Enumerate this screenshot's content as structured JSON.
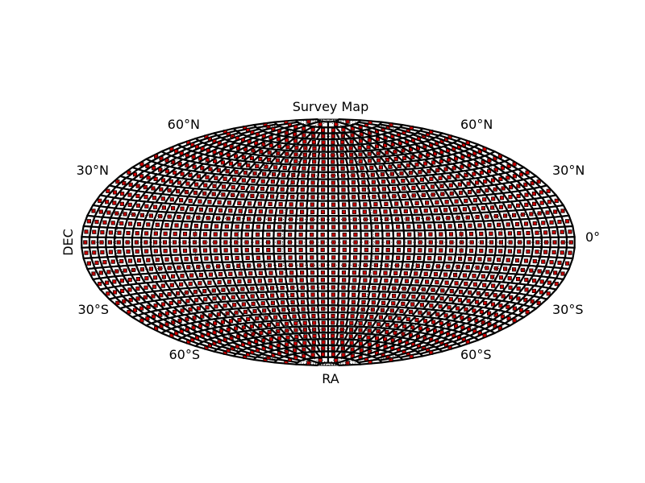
{
  "chart_data": {
    "type": "scatter",
    "projection": "hammer",
    "title": "Survey Map",
    "xlabel": "RA",
    "ylabel": "DEC",
    "lat_tick_labels": {
      "left": [
        "60°N",
        "30°N",
        "30°S",
        "60°S"
      ],
      "right": [
        "60°N",
        "30°N",
        "0°",
        "30°S",
        "60°S"
      ]
    },
    "grid": true,
    "grid_style": "dotted",
    "dec_rows": [
      {
        "dec": 85,
        "count": 4
      },
      {
        "dec": 80,
        "count": 12
      },
      {
        "dec": 75,
        "count": 18
      },
      {
        "dec": 70,
        "count": 24
      },
      {
        "dec": 65,
        "count": 30
      },
      {
        "dec": 60,
        "count": 34
      },
      {
        "dec": 55,
        "count": 38
      },
      {
        "dec": 50,
        "count": 40
      },
      {
        "dec": 45,
        "count": 42
      },
      {
        "dec": 40,
        "count": 44
      },
      {
        "dec": 35,
        "count": 46
      },
      {
        "dec": 30,
        "count": 48
      },
      {
        "dec": 25,
        "count": 48
      },
      {
        "dec": 20,
        "count": 50
      },
      {
        "dec": 15,
        "count": 50
      },
      {
        "dec": 10,
        "count": 50
      },
      {
        "dec": 5,
        "count": 50
      },
      {
        "dec": 0,
        "count": 50
      },
      {
        "dec": -5,
        "count": 50
      },
      {
        "dec": -10,
        "count": 50
      },
      {
        "dec": -15,
        "count": 50
      },
      {
        "dec": -20,
        "count": 50
      },
      {
        "dec": -25,
        "count": 48
      },
      {
        "dec": -30,
        "count": 48
      },
      {
        "dec": -35,
        "count": 46
      },
      {
        "dec": -40,
        "count": 44
      },
      {
        "dec": -45,
        "count": 42
      },
      {
        "dec": -50,
        "count": 40
      },
      {
        "dec": -55,
        "count": 38
      },
      {
        "dec": -60,
        "count": 34
      },
      {
        "dec": -65,
        "count": 30
      },
      {
        "dec": -70,
        "count": 24
      },
      {
        "dec": -75,
        "count": 18
      },
      {
        "dec": -80,
        "count": 12
      },
      {
        "dec": -85,
        "count": 4
      }
    ],
    "field_marker_color": "#cc0000",
    "field_outline_color": "#000000",
    "grid_color": "#000000"
  }
}
